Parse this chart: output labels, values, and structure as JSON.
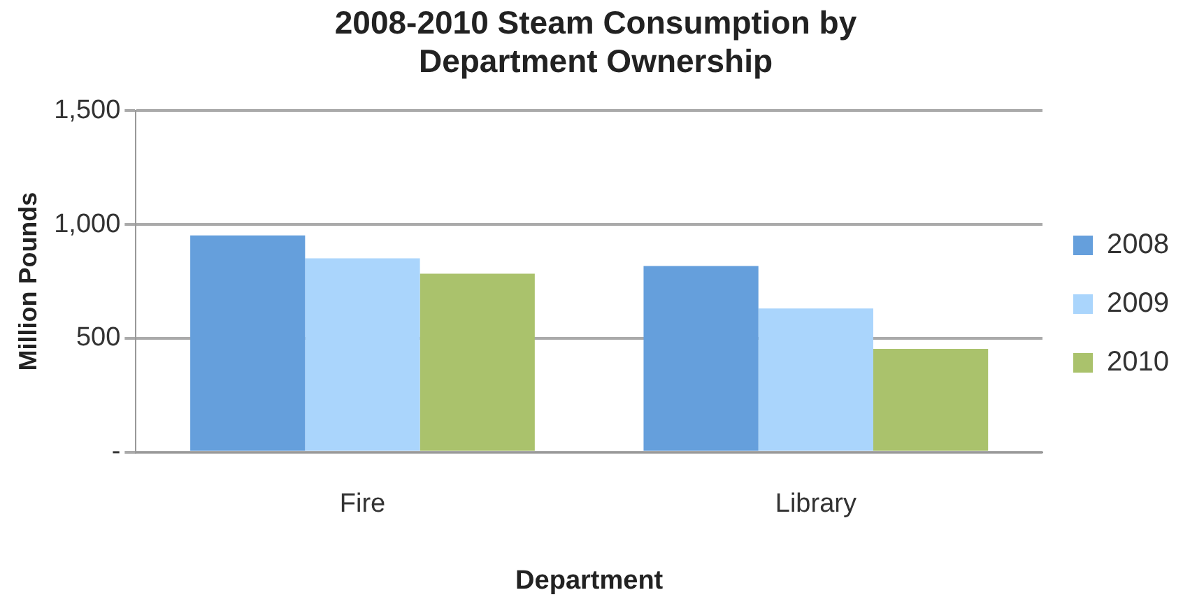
{
  "chart_data": {
    "type": "bar",
    "title": "2008-2010 Steam Consumption by Department Ownership",
    "xlabel": "Department",
    "ylabel": "Million Pounds",
    "categories": [
      "Fire",
      "Library"
    ],
    "series": [
      {
        "name": "2008",
        "color": "#659fdc",
        "values": [
          952,
          818
        ]
      },
      {
        "name": "2009",
        "color": "#aad5fc",
        "values": [
          852,
          631
        ]
      },
      {
        "name": "2010",
        "color": "#aac26c",
        "values": [
          784,
          454
        ]
      }
    ],
    "ylim": [
      0,
      1500
    ],
    "yticks": [
      {
        "value": 0,
        "label": "-"
      },
      {
        "value": 500,
        "label": "500"
      },
      {
        "value": 1000,
        "label": "1,000"
      },
      {
        "value": 1500,
        "label": "1,500"
      }
    ],
    "grid": "y",
    "legend": "right"
  }
}
